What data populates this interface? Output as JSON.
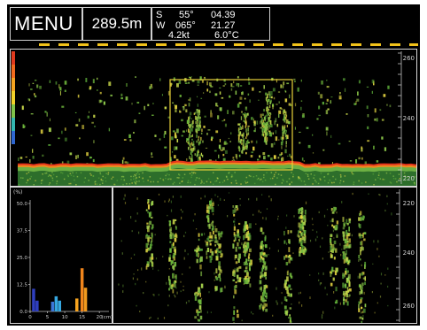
{
  "header": {
    "menu_label": "MENU",
    "depth": "289.5m",
    "nav": {
      "lat_hemi": "S",
      "lat_deg": "55°",
      "lat_min": "04.39",
      "lon_hemi": "W",
      "lon_deg": "065°",
      "lon_min": "21.27",
      "speed": "4.2kt",
      "temp": "6.0°C"
    }
  },
  "top_echogram": {
    "scale_labels": [
      "260",
      "240",
      "220"
    ],
    "colors": {
      "bottom_red": "#e8351c",
      "seabed_orange": "#f08a1e",
      "fish_green": "#7fc24a",
      "zoom_box": "#e8d23a"
    }
  },
  "bottom_echogram": {
    "scale_labels": [
      "220",
      "240",
      "260"
    ]
  },
  "histogram": {
    "y_unit": "(%)",
    "y_ticks": [
      "50.0",
      "37.5",
      "25.0",
      "12.5",
      "0.0"
    ],
    "x_ticks": [
      "0",
      "5",
      "10",
      "15",
      "20"
    ],
    "x_unit": "(cm)"
  },
  "chart_data": {
    "type": "bar",
    "ylabel": "(%)",
    "xlabel": "(cm)",
    "ylim": [
      0,
      50
    ],
    "xlim": [
      0,
      22
    ],
    "grid": false,
    "bars": [
      {
        "x": 1.0,
        "value": 10.5,
        "color": "#2f3fbf"
      },
      {
        "x": 2.0,
        "value": 5.0,
        "color": "#2f3fbf"
      },
      {
        "x": 6.5,
        "value": 4.5,
        "color": "#3b76d8"
      },
      {
        "x": 7.5,
        "value": 7.0,
        "color": "#36a7e0"
      },
      {
        "x": 8.5,
        "value": 5.0,
        "color": "#36a7e0"
      },
      {
        "x": 13.5,
        "value": 6.0,
        "color": "#f6a31e"
      },
      {
        "x": 15.0,
        "value": 20.0,
        "color": "#f0851c"
      },
      {
        "x": 16.0,
        "value": 11.0,
        "color": "#f09a1e"
      }
    ]
  }
}
